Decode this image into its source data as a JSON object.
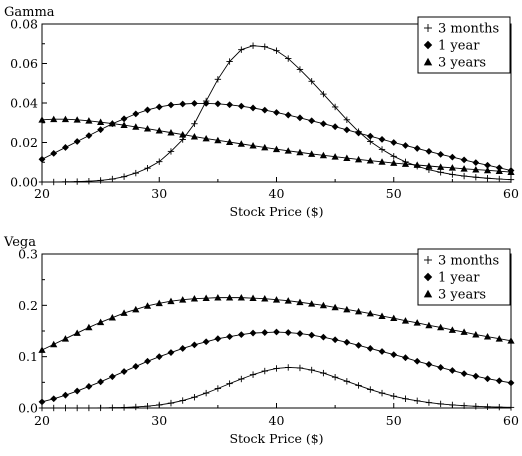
{
  "chart_data": [
    {
      "type": "line",
      "title": "Gamma",
      "xlabel": "Stock Price ($)",
      "ylabel": "",
      "xlim": [
        20,
        60
      ],
      "ylim": [
        0,
        0.08
      ],
      "xticks": [
        "20",
        "30",
        "40",
        "50",
        "60"
      ],
      "yticks": [
        "0.00",
        "0.02",
        "0.04",
        "0.06",
        "0.08"
      ],
      "legend_position": "top-right",
      "grid": false,
      "x": [
        20,
        21,
        22,
        23,
        24,
        25,
        26,
        27,
        28,
        29,
        30,
        31,
        32,
        33,
        34,
        35,
        36,
        37,
        38,
        39,
        40,
        41,
        42,
        43,
        44,
        45,
        46,
        47,
        48,
        49,
        50,
        51,
        52,
        53,
        54,
        55,
        56,
        57,
        58,
        59,
        60
      ],
      "series": [
        {
          "name": "3 months",
          "marker": "plus",
          "values": [
            0.0,
            0.0,
            0.0001,
            0.0002,
            0.0004,
            0.0008,
            0.0015,
            0.0027,
            0.0045,
            0.007,
            0.0103,
            0.0155,
            0.0215,
            0.0295,
            0.041,
            0.052,
            0.061,
            0.067,
            0.069,
            0.0685,
            0.0665,
            0.0625,
            0.057,
            0.051,
            0.0445,
            0.038,
            0.0315,
            0.0255,
            0.0205,
            0.0165,
            0.013,
            0.0102,
            0.008,
            0.0062,
            0.0049,
            0.0038,
            0.003,
            0.0024,
            0.0019,
            0.0015,
            0.0012
          ]
        },
        {
          "name": "1 year",
          "marker": "diamond",
          "values": [
            0.0115,
            0.0145,
            0.0175,
            0.0205,
            0.0235,
            0.0265,
            0.0295,
            0.032,
            0.0345,
            0.0365,
            0.038,
            0.039,
            0.0395,
            0.0398,
            0.0398,
            0.0396,
            0.0391,
            0.0384,
            0.0375,
            0.0364,
            0.0352,
            0.0339,
            0.0325,
            0.031,
            0.0295,
            0.028,
            0.0264,
            0.0248,
            0.0232,
            0.0216,
            0.02,
            0.0185,
            0.017,
            0.0155,
            0.014,
            0.0126,
            0.0112,
            0.0098,
            0.0085,
            0.0072,
            0.0058
          ]
        },
        {
          "name": "3 years",
          "marker": "triangle",
          "values": [
            0.0315,
            0.0318,
            0.0318,
            0.0315,
            0.031,
            0.0303,
            0.0296,
            0.0288,
            0.0279,
            0.027,
            0.026,
            0.025,
            0.024,
            0.023,
            0.022,
            0.0211,
            0.0202,
            0.0193,
            0.0184,
            0.0175,
            0.0166,
            0.0158,
            0.015,
            0.0142,
            0.0135,
            0.0128,
            0.0121,
            0.0114,
            0.0108,
            0.0102,
            0.0096,
            0.0091,
            0.0086,
            0.0081,
            0.0076,
            0.0072,
            0.0067,
            0.0063,
            0.0059,
            0.0055,
            0.005
          ]
        }
      ]
    },
    {
      "type": "line",
      "title": "Vega",
      "xlabel": "Stock Price ($)",
      "ylabel": "",
      "xlim": [
        20,
        60
      ],
      "ylim": [
        0,
        0.3
      ],
      "xticks": [
        "20",
        "30",
        "40",
        "50",
        "60"
      ],
      "yticks": [
        "0.0",
        "0.1",
        "0.2",
        "0.3"
      ],
      "legend_position": "top-right",
      "grid": false,
      "x": [
        20,
        21,
        22,
        23,
        24,
        25,
        26,
        27,
        28,
        29,
        30,
        31,
        32,
        33,
        34,
        35,
        36,
        37,
        38,
        39,
        40,
        41,
        42,
        43,
        44,
        45,
        46,
        47,
        48,
        49,
        50,
        51,
        52,
        53,
        54,
        55,
        56,
        57,
        58,
        59,
        60
      ],
      "series": [
        {
          "name": "3 months",
          "marker": "plus",
          "values": [
            0.0,
            0.0,
            0.0,
            0.0,
            0.0001,
            0.0002,
            0.0005,
            0.001,
            0.002,
            0.0035,
            0.006,
            0.0095,
            0.0145,
            0.021,
            0.029,
            0.038,
            0.0475,
            0.0565,
            0.065,
            0.072,
            0.077,
            0.079,
            0.078,
            0.074,
            0.068,
            0.06,
            0.052,
            0.044,
            0.036,
            0.029,
            0.023,
            0.018,
            0.014,
            0.0105,
            0.008,
            0.006,
            0.0045,
            0.0033,
            0.0024,
            0.0017,
            0.0012
          ]
        },
        {
          "name": "1 year",
          "marker": "diamond",
          "values": [
            0.012,
            0.018,
            0.025,
            0.033,
            0.042,
            0.051,
            0.061,
            0.071,
            0.081,
            0.091,
            0.1,
            0.108,
            0.116,
            0.123,
            0.129,
            0.135,
            0.139,
            0.143,
            0.146,
            0.147,
            0.148,
            0.147,
            0.145,
            0.142,
            0.138,
            0.133,
            0.128,
            0.122,
            0.116,
            0.11,
            0.104,
            0.098,
            0.091,
            0.085,
            0.079,
            0.073,
            0.067,
            0.062,
            0.057,
            0.053,
            0.049
          ]
        },
        {
          "name": "3 years",
          "marker": "triangle",
          "values": [
            0.113,
            0.124,
            0.135,
            0.146,
            0.157,
            0.167,
            0.176,
            0.185,
            0.192,
            0.199,
            0.204,
            0.208,
            0.211,
            0.213,
            0.214,
            0.215,
            0.215,
            0.215,
            0.214,
            0.213,
            0.211,
            0.209,
            0.206,
            0.203,
            0.2,
            0.196,
            0.192,
            0.188,
            0.184,
            0.179,
            0.175,
            0.17,
            0.166,
            0.161,
            0.157,
            0.152,
            0.148,
            0.143,
            0.139,
            0.135,
            0.131
          ]
        }
      ]
    }
  ]
}
